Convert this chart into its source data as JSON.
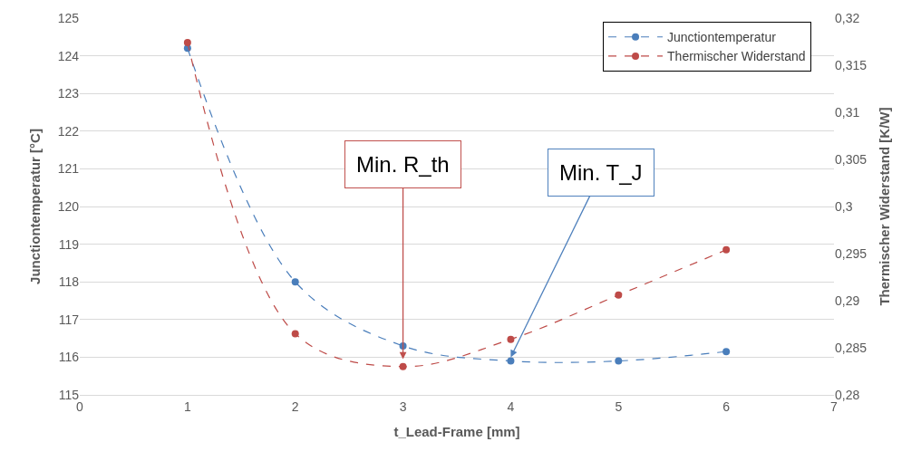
{
  "chart_data": {
    "type": "line",
    "xlabel": "t_Lead-Frame [mm]",
    "ylabel": "Junctiontemperatur [°C]",
    "y2label": "Thermischer Widerstand [K/W]",
    "x": [
      1,
      2,
      3,
      4,
      5,
      6
    ],
    "series": [
      {
        "name": "Junctiontemperatur",
        "color": "#4a7ebb",
        "values": [
          124.2,
          118.0,
          116.3,
          115.9,
          115.9,
          116.15
        ]
      },
      {
        "name": "Thermischer Widerstand",
        "color": "#be4b48",
        "axis": "y2",
        "values": [
          0.3174,
          0.2865,
          0.283,
          0.2859,
          0.2906,
          0.2954
        ]
      }
    ],
    "xlim": [
      0,
      7
    ],
    "xticks": [
      0,
      1,
      2,
      3,
      4,
      5,
      6,
      7
    ],
    "ylim": [
      115,
      125
    ],
    "yticks": [
      115,
      116,
      117,
      118,
      119,
      120,
      121,
      122,
      123,
      124,
      125
    ],
    "y2lim": [
      0.28,
      0.32
    ],
    "y2ticks": [
      {
        "value": 0.28,
        "label": "0,28"
      },
      {
        "value": 0.285,
        "label": "0,285"
      },
      {
        "value": 0.29,
        "label": "0,29"
      },
      {
        "value": 0.295,
        "label": "0,295"
      },
      {
        "value": 0.3,
        "label": "0,3"
      },
      {
        "value": 0.305,
        "label": "0,305"
      },
      {
        "value": 0.31,
        "label": "0,31"
      },
      {
        "value": 0.315,
        "label": "0,315"
      },
      {
        "value": 0.32,
        "label": "0,32"
      }
    ],
    "annotations": [
      {
        "text": "Min. R_th",
        "x": 3,
        "y": 115.95
      },
      {
        "text": "Min. T_J",
        "x": 4,
        "y": 116.0
      }
    ],
    "grid": "y",
    "legend": "top right",
    "marker": "circle",
    "line_style": "dashed"
  }
}
